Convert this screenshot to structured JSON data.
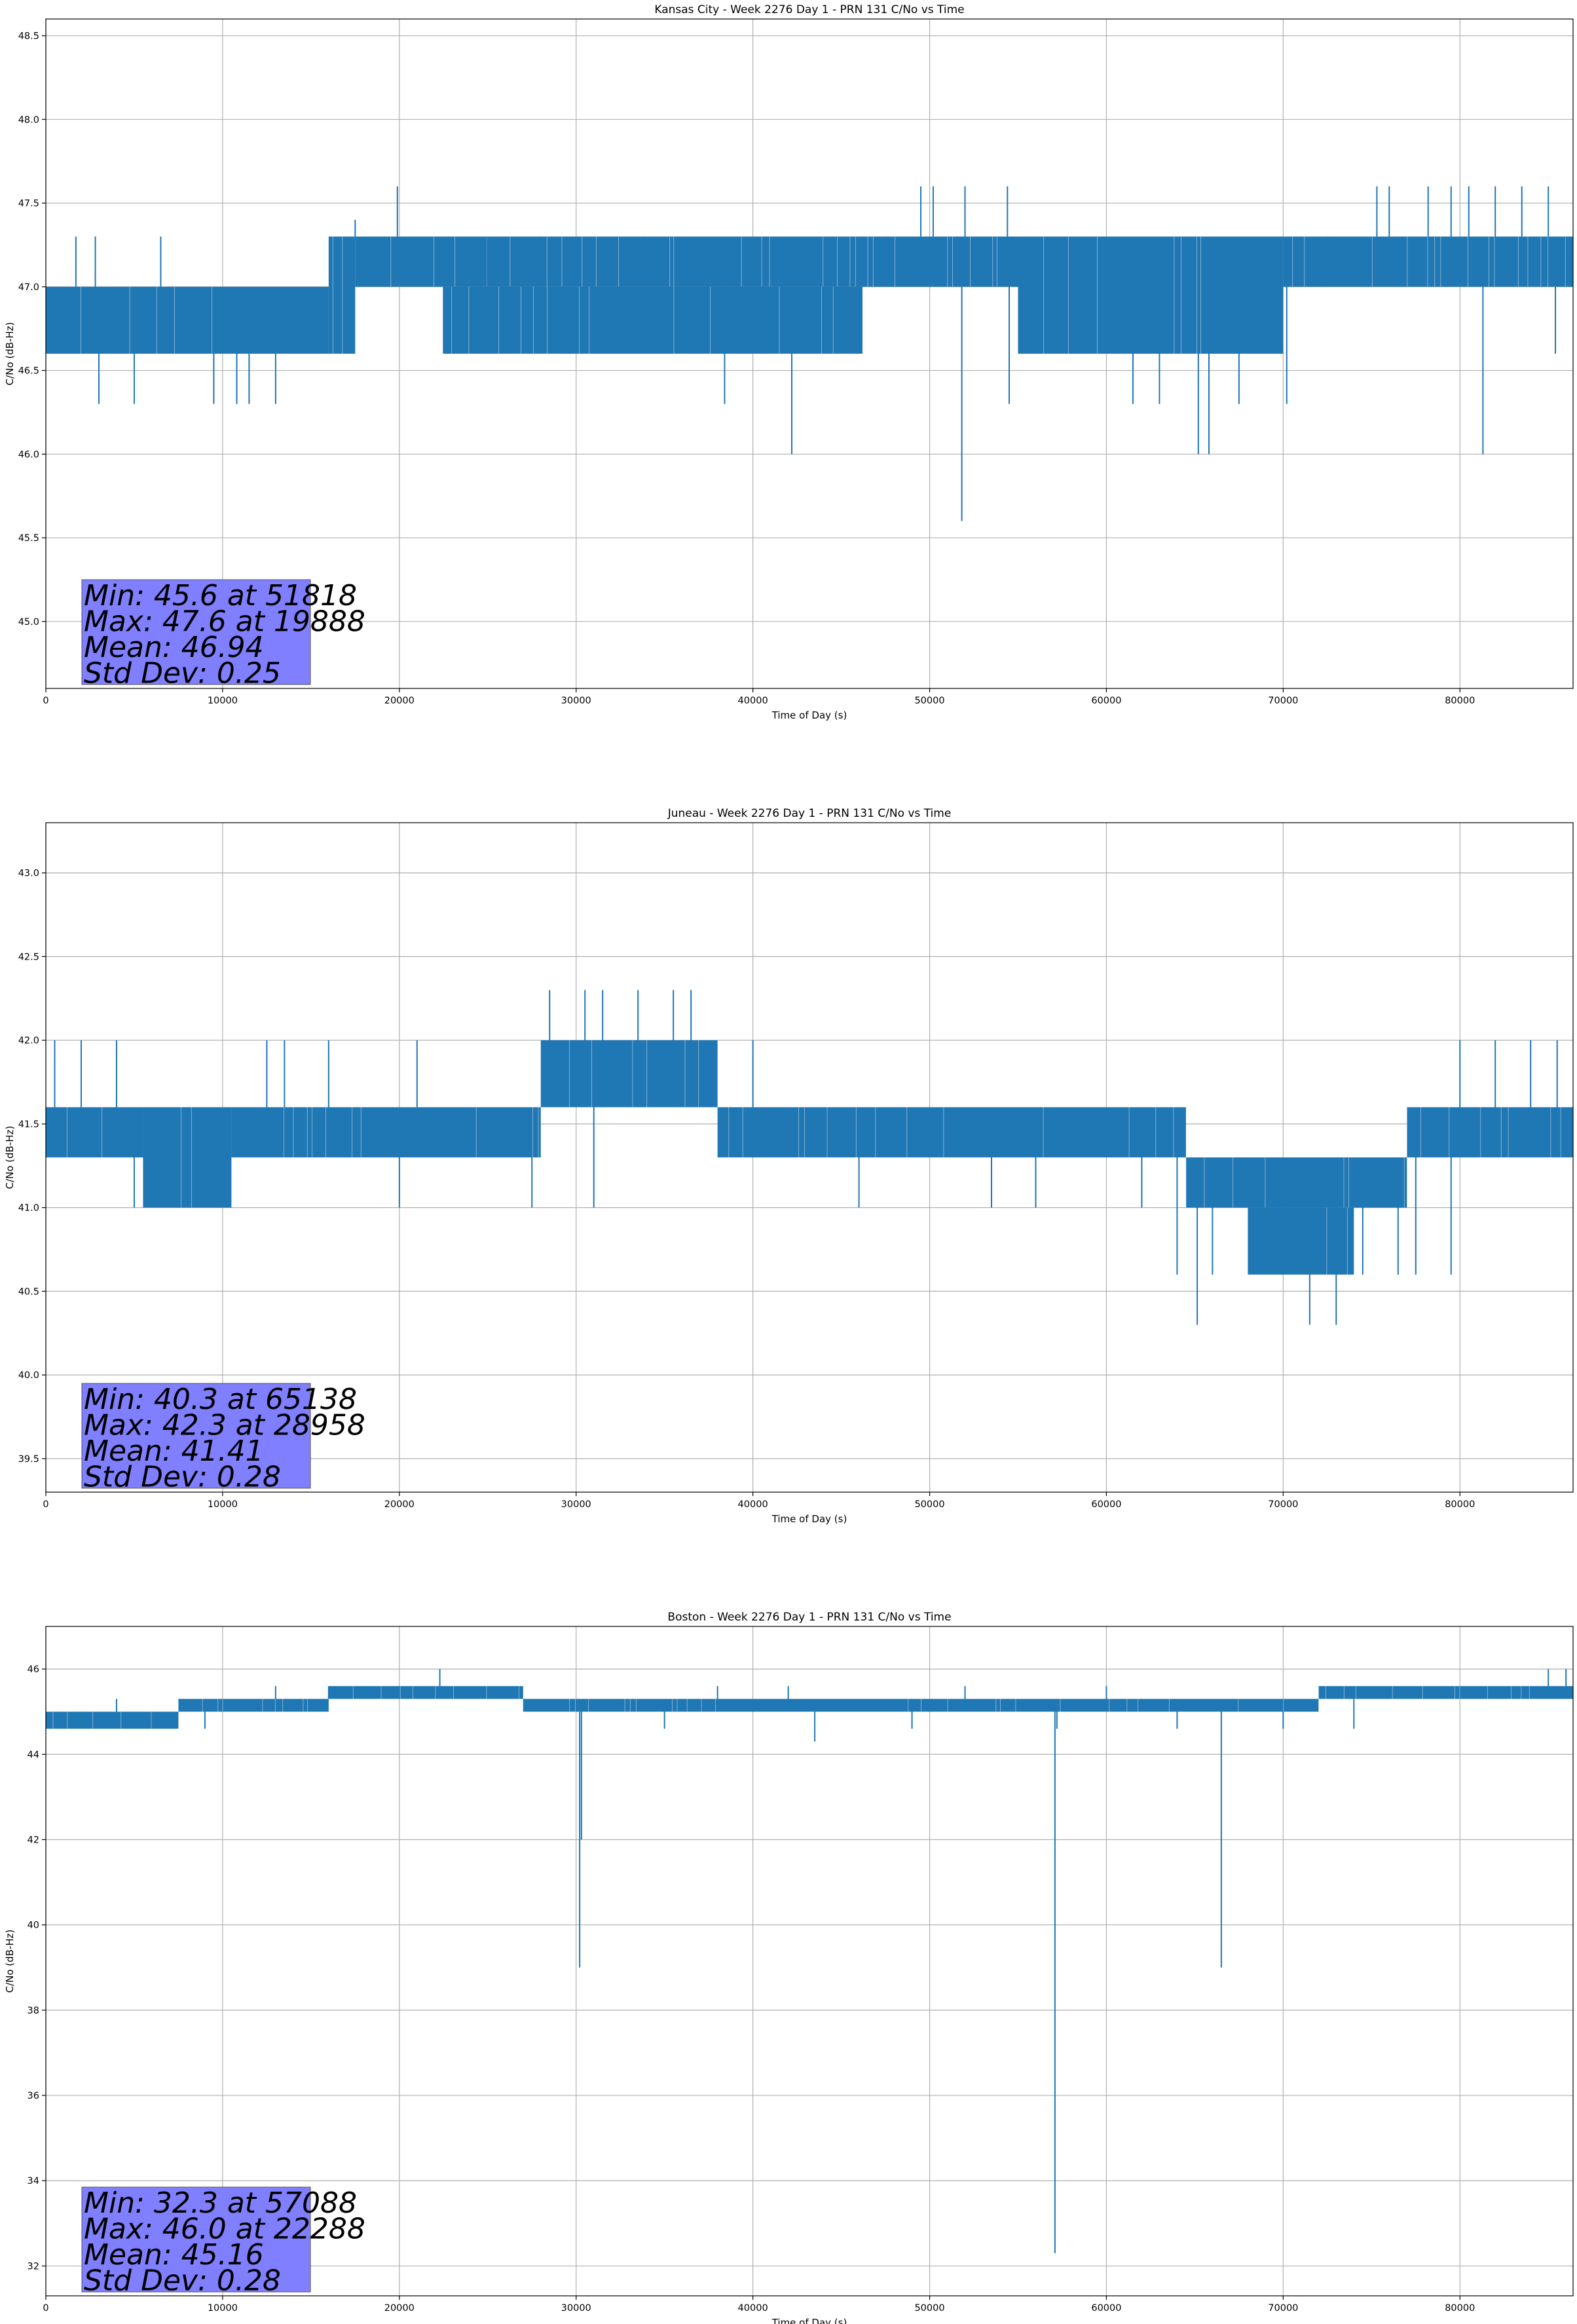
{
  "colors": {
    "series": "#1f77b4",
    "stats_box": "#7f7fff",
    "grid": "#b0b0b0"
  },
  "chart_data": [
    {
      "type": "line",
      "title": "Kansas City - Week 2276 Day 1 - PRN 131 C/No vs Time",
      "xlabel": "Time of Day (s)",
      "ylabel": "C/No (dB-Hz)",
      "xlim": [
        0,
        86400
      ],
      "ylim": [
        44.6,
        48.6
      ],
      "xticks": [
        0,
        10000,
        20000,
        30000,
        40000,
        50000,
        60000,
        70000,
        80000
      ],
      "yticks": [
        45.0,
        45.5,
        46.0,
        46.5,
        47.0,
        47.5,
        48.0,
        48.5
      ],
      "ytick_decimals": 1,
      "grid": true,
      "series": [
        {
          "bands": [
            [
              0,
              16000,
              46.6,
              47.0
            ],
            [
              16000,
              17500,
              46.6,
              47.3
            ],
            [
              17500,
              46500,
              47.0,
              47.3
            ],
            [
              22500,
              46200,
              46.6,
              47.0
            ],
            [
              46500,
              55000,
              47.0,
              47.3
            ],
            [
              55000,
              70000,
              46.6,
              47.3
            ],
            [
              70000,
              86400,
              47.0,
              47.3
            ]
          ],
          "points": [
            [
              0,
              46.7
            ],
            [
              1700,
              47.3
            ],
            [
              2800,
              47.3
            ],
            [
              3000,
              46.3
            ],
            [
              5000,
              46.3
            ],
            [
              6500,
              47.3
            ],
            [
              9500,
              46.3
            ],
            [
              10800,
              46.3
            ],
            [
              11500,
              46.3
            ],
            [
              13000,
              46.3
            ],
            [
              17500,
              47.4
            ],
            [
              19888,
              47.6
            ],
            [
              22500,
              46.6
            ],
            [
              25000,
              47.3
            ],
            [
              28000,
              47.3
            ],
            [
              33800,
              47.3
            ],
            [
              38400,
              46.3
            ],
            [
              42200,
              46.0
            ],
            [
              46000,
              46.6
            ],
            [
              47500,
              47.3
            ],
            [
              49500,
              47.6
            ],
            [
              50200,
              47.6
            ],
            [
              51818,
              45.6
            ],
            [
              52000,
              47.6
            ],
            [
              54500,
              46.3
            ],
            [
              54400,
              47.6
            ],
            [
              57000,
              46.6
            ],
            [
              61500,
              46.3
            ],
            [
              63000,
              46.3
            ],
            [
              65200,
              46.0
            ],
            [
              65800,
              46.0
            ],
            [
              67500,
              46.3
            ],
            [
              70200,
              46.3
            ],
            [
              72500,
              47.3
            ],
            [
              75300,
              47.6
            ],
            [
              76000,
              47.6
            ],
            [
              78200,
              47.6
            ],
            [
              79500,
              47.6
            ],
            [
              80500,
              47.6
            ],
            [
              81300,
              46.0
            ],
            [
              82000,
              47.6
            ],
            [
              83500,
              47.6
            ],
            [
              85000,
              47.6
            ],
            [
              85400,
              46.6
            ],
            [
              86400,
              47.1
            ]
          ]
        }
      ],
      "stats": [
        "Min: 45.6 at 51818",
        "Max: 47.6 at 19888",
        "Mean: 46.94",
        "Std Dev: 0.25"
      ]
    },
    {
      "type": "line",
      "title": "Juneau - Week 2276 Day 1 - PRN 131 C/No vs Time",
      "xlabel": "Time of Day (s)",
      "ylabel": "C/No (dB-Hz)",
      "xlim": [
        0,
        86400
      ],
      "ylim": [
        39.3,
        43.3
      ],
      "xticks": [
        0,
        10000,
        20000,
        30000,
        40000,
        50000,
        60000,
        70000,
        80000
      ],
      "yticks": [
        39.5,
        40.0,
        40.5,
        41.0,
        41.5,
        42.0,
        42.5,
        43.0
      ],
      "ytick_decimals": 1,
      "grid": true,
      "series": [
        {
          "bands": [
            [
              0,
              5500,
              41.3,
              41.6
            ],
            [
              5500,
              10500,
              41.0,
              41.6
            ],
            [
              10500,
              28000,
              41.3,
              41.6
            ],
            [
              28000,
              38000,
              41.6,
              42.0
            ],
            [
              38000,
              54000,
              41.3,
              41.6
            ],
            [
              54000,
              64500,
              41.3,
              41.6
            ],
            [
              64500,
              77000,
              41.0,
              41.3
            ],
            [
              68000,
              74000,
              40.6,
              41.0
            ],
            [
              77000,
              86400,
              41.3,
              41.6
            ]
          ],
          "points": [
            [
              0,
              41.4
            ],
            [
              500,
              42.0
            ],
            [
              2000,
              42.0
            ],
            [
              4000,
              42.0
            ],
            [
              5000,
              41.0
            ],
            [
              6500,
              41.0
            ],
            [
              9000,
              41.0
            ],
            [
              12500,
              42.0
            ],
            [
              13500,
              42.0
            ],
            [
              16000,
              42.0
            ],
            [
              20000,
              41.0
            ],
            [
              21000,
              42.0
            ],
            [
              27500,
              41.0
            ],
            [
              28500,
              42.3
            ],
            [
              30500,
              42.3
            ],
            [
              31500,
              42.3
            ],
            [
              33500,
              42.3
            ],
            [
              35500,
              42.3
            ],
            [
              36500,
              42.3
            ],
            [
              31000,
              41.0
            ],
            [
              40000,
              42.0
            ],
            [
              46000,
              41.0
            ],
            [
              53500,
              41.0
            ],
            [
              56000,
              41.0
            ],
            [
              62000,
              41.0
            ],
            [
              64000,
              40.6
            ],
            [
              65138,
              40.3
            ],
            [
              66000,
              40.6
            ],
            [
              70000,
              40.6
            ],
            [
              71500,
              40.3
            ],
            [
              73000,
              40.3
            ],
            [
              74500,
              40.6
            ],
            [
              76500,
              40.6
            ],
            [
              77500,
              40.6
            ],
            [
              79500,
              40.6
            ],
            [
              80000,
              42.0
            ],
            [
              82000,
              42.0
            ],
            [
              84000,
              42.0
            ],
            [
              85500,
              42.0
            ],
            [
              86400,
              41.5
            ]
          ]
        }
      ],
      "stats": [
        "Min: 40.3 at 65138",
        "Max: 42.3 at 28958",
        "Mean: 41.41",
        "Std Dev: 0.28"
      ]
    },
    {
      "type": "line",
      "title": "Boston - Week 2276 Day 1 - PRN 131 C/No vs Time",
      "xlabel": "Time of Day (s)",
      "ylabel": "C/No (dB-Hz)",
      "xlim": [
        0,
        86400
      ],
      "ylim": [
        31.3,
        47.0
      ],
      "xticks": [
        0,
        10000,
        20000,
        30000,
        40000,
        50000,
        60000,
        70000,
        80000
      ],
      "yticks": [
        32,
        34,
        36,
        38,
        40,
        42,
        44,
        46
      ],
      "ytick_decimals": 0,
      "grid": true,
      "series": [
        {
          "bands": [
            [
              0,
              7500,
              44.6,
              45.0
            ],
            [
              7500,
              16000,
              45.0,
              45.3
            ],
            [
              16000,
              27000,
              45.3,
              45.6
            ],
            [
              27000,
              72000,
              45.0,
              45.3
            ],
            [
              72000,
              86400,
              45.3,
              45.6
            ]
          ],
          "points": [
            [
              0,
              45.0
            ],
            [
              4000,
              45.3
            ],
            [
              9000,
              44.6
            ],
            [
              13000,
              45.6
            ],
            [
              16000,
              45.6
            ],
            [
              22288,
              46.0
            ],
            [
              30200,
              39.0
            ],
            [
              30300,
              42.0
            ],
            [
              35000,
              44.6
            ],
            [
              38000,
              45.6
            ],
            [
              42000,
              45.6
            ],
            [
              43500,
              44.3
            ],
            [
              49000,
              44.6
            ],
            [
              52000,
              45.6
            ],
            [
              57088,
              32.3
            ],
            [
              57200,
              44.6
            ],
            [
              60000,
              45.6
            ],
            [
              64000,
              44.6
            ],
            [
              66500,
              39.0
            ],
            [
              70000,
              44.6
            ],
            [
              74000,
              44.6
            ],
            [
              79000,
              45.6
            ],
            [
              85000,
              46.0
            ],
            [
              86000,
              46.0
            ],
            [
              86400,
              45.4
            ]
          ]
        }
      ],
      "stats": [
        "Min: 32.3 at 57088",
        "Max: 46.0 at 22288",
        "Mean: 45.16",
        "Std Dev: 0.28"
      ]
    }
  ]
}
